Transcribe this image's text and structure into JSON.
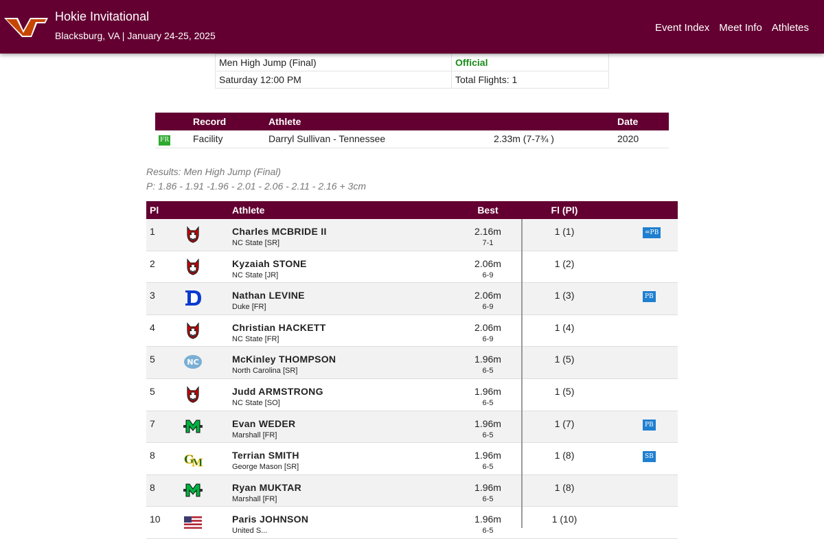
{
  "meet": {
    "name": "Hokie Invitational",
    "location_dates": "Blacksburg, VA | January 24-25, 2025",
    "logo": "vt-logo",
    "nav": [
      "Event Index",
      "Meet Info",
      "Athletes"
    ]
  },
  "event": {
    "name": "Men High Jump",
    "round": "(Final)",
    "status": "Official",
    "time": "Saturday 12:00 PM",
    "flights": "Total Flights: 1"
  },
  "records": {
    "headers": {
      "record": "Record",
      "athlete": "Athlete",
      "date": "Date"
    },
    "rows": [
      {
        "badge": "FR",
        "record": "Facility",
        "athlete": "Darryl Sullivan - Tennessee",
        "mark": "2.33m (7-7¾ )",
        "date": "2020"
      }
    ]
  },
  "results": {
    "title": "Results: Men High Jump (Final)",
    "progression": "P: 1.86 - 1.91 -1.96 - 2.01 - 2.06 - 2.11 - 2.16 + 3cm",
    "headers": {
      "place": "Pl",
      "athlete": "Athlete",
      "best": "Best",
      "flight": "Fl (Pl)"
    },
    "rows": [
      {
        "place": "1",
        "name": "Charles MCBRIDE II",
        "team": "NC State [SR]",
        "logo": "nc-state-wolf-icon",
        "mark": "2.16m",
        "conv": "7-1",
        "flight": "1 (1)",
        "badge": "=PB"
      },
      {
        "place": "2",
        "name": "Kyzaiah STONE",
        "team": "NC State [JR]",
        "logo": "nc-state-wolf-icon",
        "mark": "2.06m",
        "conv": "6-9",
        "flight": "1 (2)",
        "badge": ""
      },
      {
        "place": "3",
        "name": "Nathan LEVINE",
        "team": "Duke [FR]",
        "logo": "duke-d-icon",
        "mark": "2.06m",
        "conv": "6-9",
        "flight": "1 (3)",
        "badge": "PB"
      },
      {
        "place": "4",
        "name": "Christian HACKETT",
        "team": "NC State [FR]",
        "logo": "nc-state-wolf-icon",
        "mark": "2.06m",
        "conv": "6-9",
        "flight": "1 (4)",
        "badge": ""
      },
      {
        "place": "5",
        "name": "McKinley THOMPSON",
        "team": "North Carolina [SR]",
        "logo": "unc-icon",
        "mark": "1.96m",
        "conv": "6-5",
        "flight": "1 (5)",
        "badge": ""
      },
      {
        "place": "5",
        "name": "Judd ARMSTRONG",
        "team": "NC State [SO]",
        "logo": "nc-state-wolf-icon",
        "mark": "1.96m",
        "conv": "6-5",
        "flight": "1 (5)",
        "badge": ""
      },
      {
        "place": "7",
        "name": "Evan WEDER",
        "team": "Marshall [FR]",
        "logo": "marshall-m-icon",
        "mark": "1.96m",
        "conv": "6-5",
        "flight": "1 (7)",
        "badge": "PB"
      },
      {
        "place": "8",
        "name": "Terrian SMITH",
        "team": "George Mason [SR]",
        "logo": "george-mason-icon",
        "mark": "1.96m",
        "conv": "6-5",
        "flight": "1 (8)",
        "badge": "SB"
      },
      {
        "place": "8",
        "name": "Ryan MUKTAR",
        "team": "Marshall [FR]",
        "logo": "marshall-m-icon",
        "mark": "1.96m",
        "conv": "6-5",
        "flight": "1 (8)",
        "badge": ""
      },
      {
        "place": "10",
        "name": "Paris JOHNSON",
        "team": "United S...",
        "logo": "usa-flag-icon",
        "mark": "1.96m",
        "conv": "6-5",
        "flight": "1 (10)",
        "badge": ""
      }
    ]
  }
}
